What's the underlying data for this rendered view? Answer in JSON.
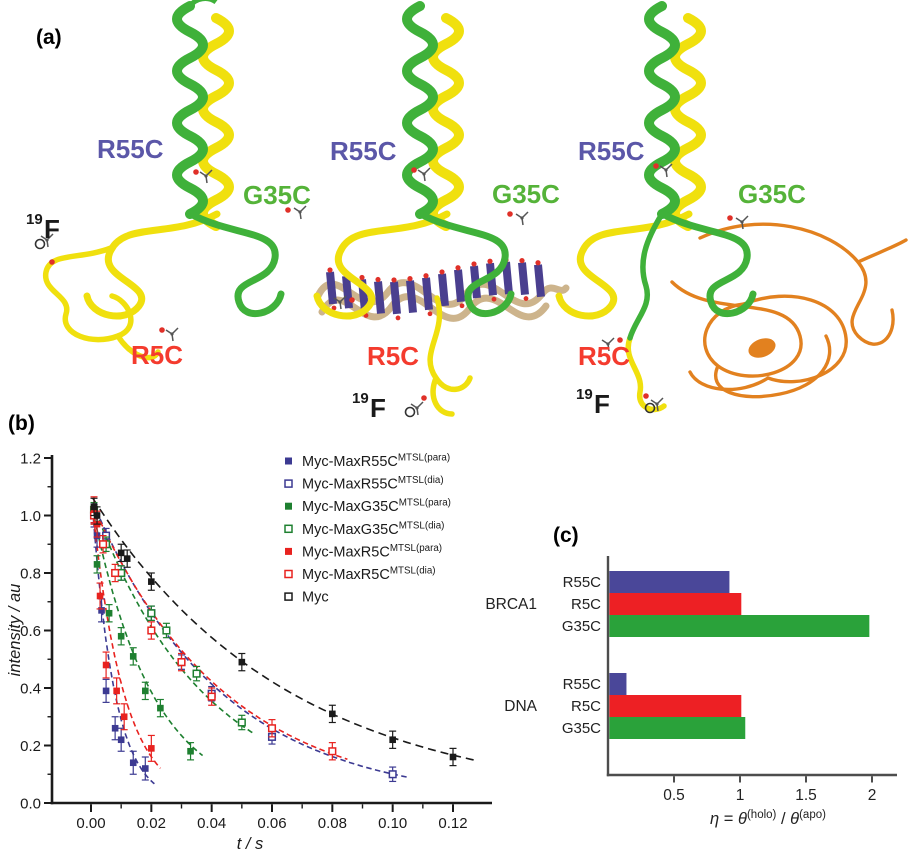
{
  "panels": {
    "a": {
      "label": "(a)",
      "sites": {
        "r55c": "R55C",
        "g35c": "G35C",
        "r5c": "R5C",
        "f19_sup": "19",
        "f19": "F"
      }
    },
    "b": {
      "label": "(b)"
    },
    "c": {
      "label": "(c)"
    }
  },
  "colors": {
    "black": "#1a1a1a",
    "plot_navy": "#3c3a92",
    "plot_green": "#1e8030",
    "plot_red": "#e8221f",
    "bar_indigo": "#4a4799",
    "bar_red": "#ed2024",
    "bar_green": "#2aa23a",
    "helix_green": "#3fb13a",
    "helix_yellow": "#f0e00e",
    "dna_base": "#4a3f8f",
    "dna_backbone": "#cdb48c",
    "brca1_orange": "#e2811f",
    "axis_gray": "#4d4d4d",
    "label_slate": "#5b57a8",
    "label_green": "#55b339",
    "label_red": "#f43b2e"
  },
  "chart_data": [
    {
      "type": "scatter",
      "title": "",
      "xlabel": "t / s",
      "ylabel": "intensity / au",
      "xlim": [
        -0.005,
        0.132
      ],
      "ylim": [
        0.0,
        1.2
      ],
      "xticks": [
        0.0,
        0.02,
        0.04,
        0.06,
        0.08,
        0.1,
        0.12
      ],
      "yticks": [
        0.0,
        0.2,
        0.4,
        0.6,
        0.8,
        1.0,
        1.2
      ],
      "grid": false,
      "legend_position": "top-right-inside",
      "series": [
        {
          "name": "Myc-MaxR55C",
          "sup": "MTSL(para)",
          "color": "#3c3a92",
          "marker": "filled",
          "x": [
            0.001,
            0.002,
            0.0035,
            0.005,
            0.008,
            0.01,
            0.014,
            0.018
          ],
          "y": [
            1.0,
            0.93,
            0.67,
            0.39,
            0.26,
            0.22,
            0.14,
            0.12
          ],
          "yerr": 0.04,
          "fit": {
            "a": 1.1,
            "tau": 0.0075,
            "t_end": 0.021
          }
        },
        {
          "name": "Myc-MaxR55C",
          "sup": "MTSL(dia)",
          "color": "#3c3a92",
          "marker": "open",
          "x": [
            0.001,
            0.005,
            0.01,
            0.02,
            0.03,
            0.04,
            0.06,
            0.1
          ],
          "y": [
            1.0,
            0.93,
            0.8,
            0.66,
            0.49,
            0.38,
            0.23,
            0.1
          ],
          "yerr": 0.025,
          "fit": {
            "a": 1.06,
            "tau": 0.0425,
            "t_end": 0.105
          }
        },
        {
          "name": "Myc-MaxG35C",
          "sup": "MTSL(para)",
          "color": "#1e8030",
          "marker": "filled",
          "x": [
            0.001,
            0.002,
            0.006,
            0.01,
            0.014,
            0.018,
            0.023,
            0.033
          ],
          "y": [
            1.0,
            0.83,
            0.66,
            0.58,
            0.51,
            0.39,
            0.33,
            0.18
          ],
          "yerr": 0.03,
          "fit": {
            "a": 1.05,
            "tau": 0.02,
            "t_end": 0.037
          }
        },
        {
          "name": "Myc-MaxG35C",
          "sup": "MTSL(dia)",
          "color": "#1e8030",
          "marker": "open",
          "x": [
            0.001,
            0.005,
            0.01,
            0.02,
            0.025,
            0.035,
            0.05
          ],
          "y": [
            1.02,
            0.9,
            0.8,
            0.66,
            0.6,
            0.45,
            0.28
          ],
          "yerr": 0.025,
          "fit": {
            "a": 1.06,
            "tau": 0.0365,
            "t_end": 0.054
          }
        },
        {
          "name": "Myc-MaxR5C",
          "sup": "MTSL(para)",
          "color": "#e8221f",
          "marker": "filled",
          "x": [
            0.001,
            0.002,
            0.003,
            0.005,
            0.0085,
            0.011,
            0.02
          ],
          "y": [
            1.02,
            0.97,
            0.72,
            0.48,
            0.39,
            0.3,
            0.19
          ],
          "yerr": 0.045,
          "fit": {
            "a": 1.08,
            "tau": 0.0105,
            "t_end": 0.023
          }
        },
        {
          "name": "Myc-MaxR5C",
          "sup": "MTSL(dia)",
          "color": "#e8221f",
          "marker": "open",
          "x": [
            0.001,
            0.004,
            0.008,
            0.02,
            0.03,
            0.04,
            0.06,
            0.08
          ],
          "y": [
            1.0,
            0.9,
            0.8,
            0.6,
            0.49,
            0.37,
            0.26,
            0.18
          ],
          "yerr": 0.03,
          "fit": {
            "a": 1.05,
            "tau": 0.044,
            "t_end": 0.085
          }
        },
        {
          "name": "Myc",
          "sup": "",
          "color": "#1a1a1a",
          "marker": "filled",
          "legend_marker": "open",
          "x": [
            0.001,
            0.002,
            0.01,
            0.012,
            0.02,
            0.05,
            0.08,
            0.1,
            0.12
          ],
          "y": [
            1.03,
            1.0,
            0.87,
            0.85,
            0.77,
            0.49,
            0.31,
            0.22,
            0.16
          ],
          "yerr": 0.03,
          "fit": {
            "a": 1.07,
            "tau": 0.0645,
            "t_end": 0.128
          }
        }
      ]
    },
    {
      "type": "bar",
      "orientation": "horizontal",
      "xlabel": "η = θ(holo) / θ(apo)",
      "xlabel_parts": [
        {
          "t": "η",
          "italic": true
        },
        {
          "t": " = "
        },
        {
          "t": "θ",
          "italic": true
        },
        {
          "t": "(holo)",
          "sup": true
        },
        {
          "t": " / "
        },
        {
          "t": "θ",
          "italic": true
        },
        {
          "t": "(apo)",
          "sup": true
        }
      ],
      "xticks": [
        0.5,
        1,
        1.5,
        2
      ],
      "xlim": [
        0,
        2.15
      ],
      "groups": [
        {
          "label": "BRCA1",
          "bars": [
            {
              "label": "R55C",
              "value": 0.91,
              "color": "#4a4799"
            },
            {
              "label": "R5C",
              "value": 1.0,
              "color": "#ed2024"
            },
            {
              "label": "G35C",
              "value": 1.97,
              "color": "#2aa23a"
            }
          ]
        },
        {
          "label": "DNA",
          "bars": [
            {
              "label": "R55C",
              "value": 0.13,
              "color": "#4a4799"
            },
            {
              "label": "R5C",
              "value": 1.0,
              "color": "#ed2024"
            },
            {
              "label": "G35C",
              "value": 1.03,
              "color": "#2aa23a"
            }
          ]
        }
      ]
    }
  ]
}
